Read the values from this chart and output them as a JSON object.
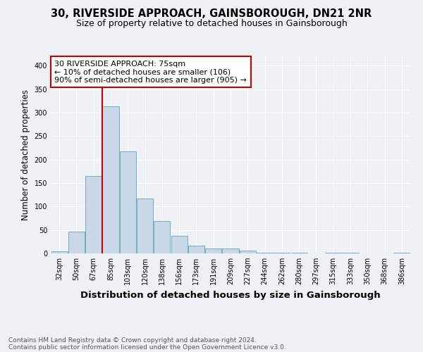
{
  "title": "30, RIVERSIDE APPROACH, GAINSBOROUGH, DN21 2NR",
  "subtitle": "Size of property relative to detached houses in Gainsborough",
  "xlabel": "Distribution of detached houses by size in Gainsborough",
  "ylabel": "Number of detached properties",
  "categories": [
    "32sqm",
    "50sqm",
    "67sqm",
    "85sqm",
    "103sqm",
    "120sqm",
    "138sqm",
    "156sqm",
    "173sqm",
    "191sqm",
    "209sqm",
    "227sqm",
    "244sqm",
    "262sqm",
    "280sqm",
    "297sqm",
    "315sqm",
    "333sqm",
    "350sqm",
    "368sqm",
    "386sqm"
  ],
  "values": [
    4,
    46,
    165,
    313,
    218,
    117,
    69,
    38,
    17,
    10,
    10,
    6,
    2,
    1,
    1,
    0,
    2,
    1,
    0,
    0,
    2
  ],
  "bar_color": "#c8d8e8",
  "bar_edge_color": "#7aaabb",
  "vline_color": "#cc0000",
  "vline_pos": 2.5,
  "annotation_text": "30 RIVERSIDE APPROACH: 75sqm\n← 10% of detached houses are smaller (106)\n90% of semi-detached houses are larger (905) →",
  "annotation_box_color": "#cc0000",
  "ylim": [
    0,
    420
  ],
  "yticks": [
    0,
    50,
    100,
    150,
    200,
    250,
    300,
    350,
    400
  ],
  "footer1": "Contains HM Land Registry data © Crown copyright and database right 2024.",
  "footer2": "Contains public sector information licensed under the Open Government Licence v3.0.",
  "bg_color": "#eef2f6",
  "plot_bg_color": "#eef2f6",
  "grid_color": "#ffffff",
  "title_fontsize": 10.5,
  "subtitle_fontsize": 9,
  "ylabel_fontsize": 8.5,
  "xlabel_fontsize": 9.5,
  "tick_fontsize": 7,
  "annotation_fontsize": 8,
  "footer_fontsize": 6.5
}
